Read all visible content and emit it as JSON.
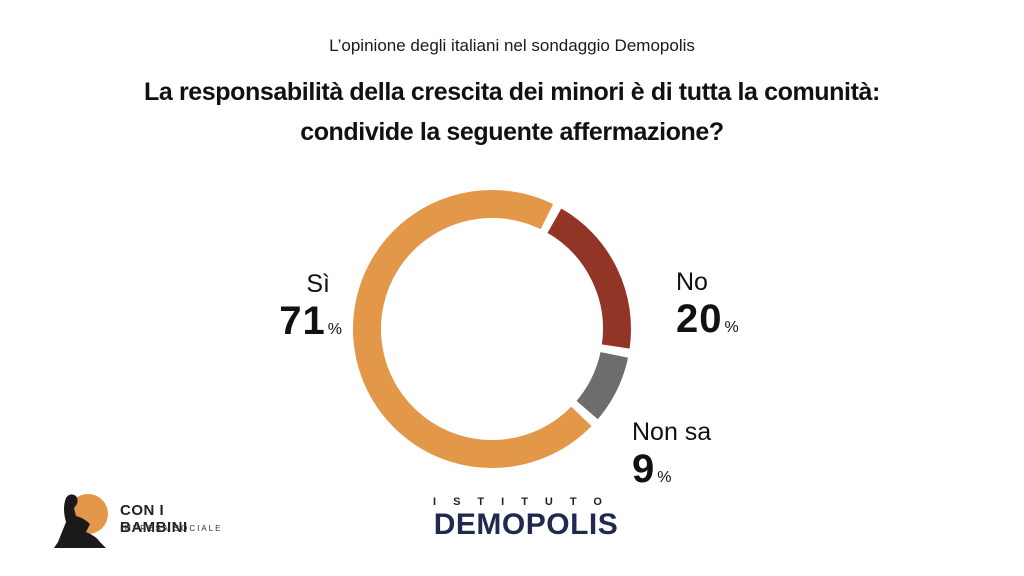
{
  "header": {
    "subtitle": "L’opinione degli italiani nel sondaggio Demopolis",
    "title_line1": "La responsabilità della crescita dei minori è di tutta la comunità:",
    "title_line2": "condivide la seguente affermazione?"
  },
  "chart_data": {
    "type": "pie",
    "variant": "donut",
    "slices": [
      {
        "label": "Sì",
        "value": 71,
        "color": "#E39749"
      },
      {
        "label": "No",
        "value": 20,
        "color": "#923526"
      },
      {
        "label": "Non sa",
        "value": 9,
        "color": "#6B6E6B"
      }
    ],
    "value_suffix": "%",
    "legend": "none"
  },
  "labels": {
    "si": {
      "name": "Sì",
      "value": "71",
      "unit": "%"
    },
    "no": {
      "name": "No",
      "value": "20",
      "unit": "%"
    },
    "non_sa": {
      "name": "Non sa",
      "value": "9",
      "unit": "%"
    }
  },
  "logos": {
    "left_brand": "CON I BAMBINI",
    "left_sub": "IMPRESA SOCIALE",
    "center_top": "ISTITUTO",
    "center_main": "DEMOPOLIS"
  }
}
